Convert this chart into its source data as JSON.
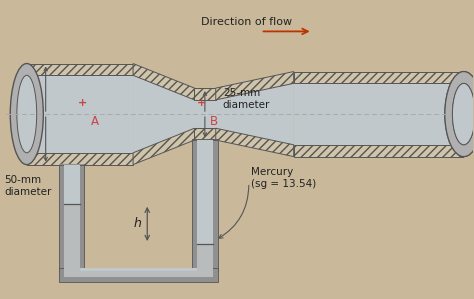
{
  "background_color": "#c9b99a",
  "title": "Direction of flow",
  "title_color": "#222222",
  "arrow_color": "#bb3300",
  "label_A": "A",
  "label_B": "B",
  "label_50mm": "50-mm\ndiameter",
  "label_25mm": "25-mm\ndiameter",
  "label_mercury": "Mercury\n(sg = 13.54)",
  "label_h": "h",
  "hatch_fc": "#d0c4aa",
  "hatch_ec": "#555555",
  "pipe_gray": "#b0b0b0",
  "dark_gray": "#555555",
  "fluid_color": "#c0c8cc",
  "mercury_color": "#b8bcbc",
  "wall_col": "#909090",
  "dashed_color": "#999999",
  "centerline_color": "#aaaaaa",
  "red_label": "#cc4444"
}
